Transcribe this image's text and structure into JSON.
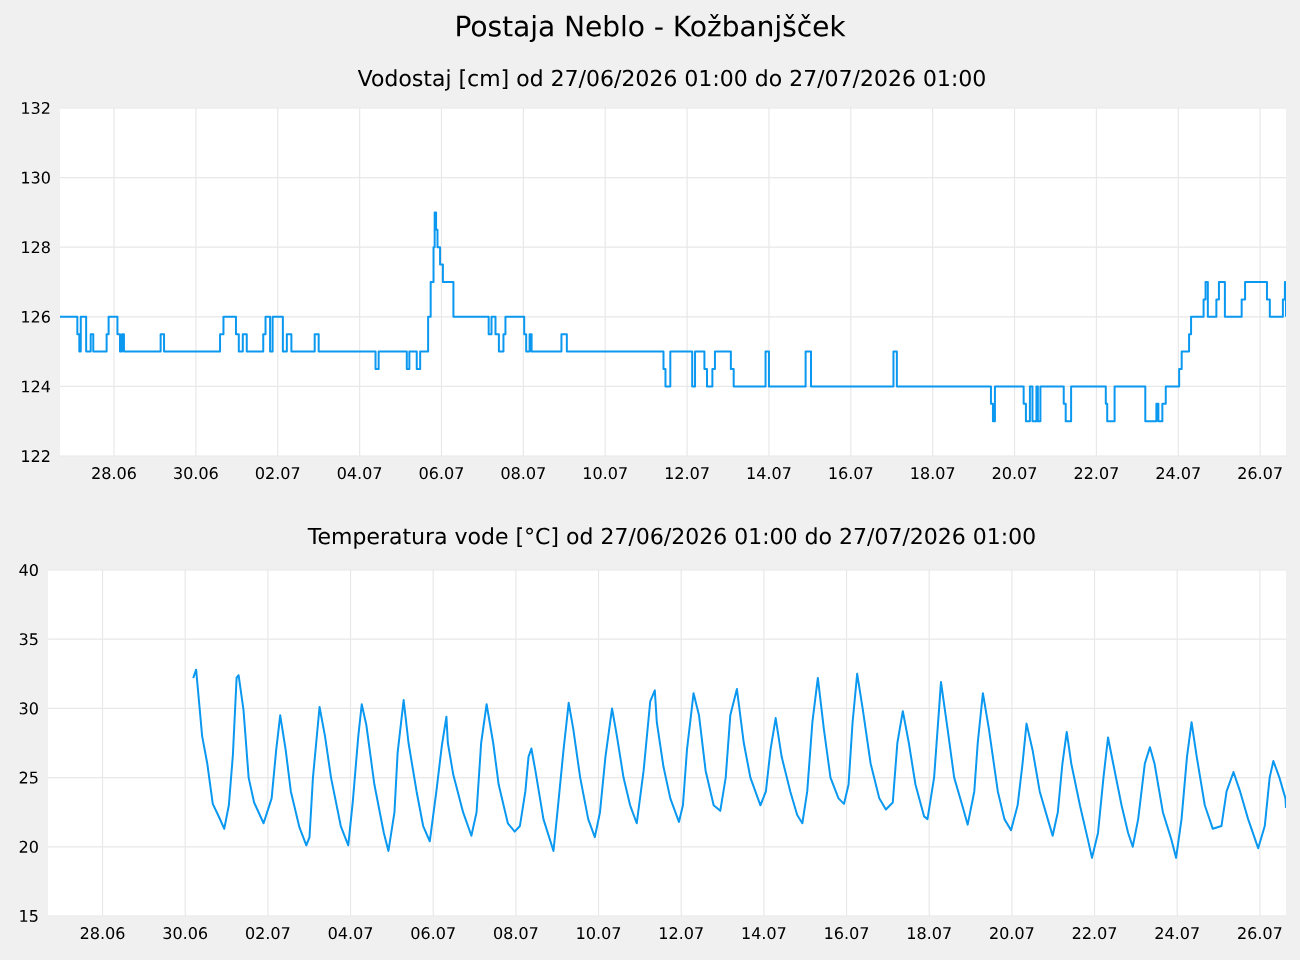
{
  "chart_data": [
    {
      "type": "step",
      "title": "Postaja Neblo - Kožbanjšček",
      "subtitle": "Vodostaj [cm] od 27/06/2026 01:00 do 27/07/2026 01:00",
      "color": "#0a98f0",
      "grid": true,
      "xlim": [
        "2026-06-26T16:20",
        "2026-07-26T15:10"
      ],
      "xticks": [
        {
          "value": "2026-06-28",
          "label": "28.06"
        },
        {
          "value": "2026-06-30",
          "label": "30.06"
        },
        {
          "value": "2026-07-02",
          "label": "02.07"
        },
        {
          "value": "2026-07-04",
          "label": "04.07"
        },
        {
          "value": "2026-07-06",
          "label": "06.07"
        },
        {
          "value": "2026-07-08",
          "label": "08.07"
        },
        {
          "value": "2026-07-10",
          "label": "10.07"
        },
        {
          "value": "2026-07-12",
          "label": "12.07"
        },
        {
          "value": "2026-07-14",
          "label": "14.07"
        },
        {
          "value": "2026-07-16",
          "label": "16.07"
        },
        {
          "value": "2026-07-18",
          "label": "18.07"
        },
        {
          "value": "2026-07-20",
          "label": "20.07"
        },
        {
          "value": "2026-07-22",
          "label": "22.07"
        },
        {
          "value": "2026-07-24",
          "label": "24.07"
        },
        {
          "value": "2026-07-26",
          "label": "26.07"
        }
      ],
      "ylim": [
        122,
        132
      ],
      "yticks": [
        122,
        124,
        126,
        128,
        130,
        132
      ],
      "x": [
        "2026-06-26T16:20",
        "2026-06-27T02:30",
        "2026-06-27T03:40",
        "2026-06-27T04:30",
        "2026-06-27T07:40",
        "2026-06-27T10:20",
        "2026-06-27T11:50",
        "2026-06-27T19:40",
        "2026-06-27T20:50",
        "2026-06-28T02:00",
        "2026-06-28T03:30",
        "2026-06-28T04:40",
        "2026-06-28T05:50",
        "2026-06-29T03:20",
        "2026-06-29T05:20",
        "2026-06-30T14:10",
        "2026-06-30T16:10",
        "2026-06-30T23:30",
        "2026-07-01T01:10",
        "2026-07-01T03:30",
        "2026-07-01T05:50",
        "2026-07-01T15:30",
        "2026-07-01T16:50",
        "2026-07-01T19:30",
        "2026-07-01T21:00",
        "2026-07-02T03:00",
        "2026-07-02T05:20",
        "2026-07-02T08:00",
        "2026-07-02T21:40",
        "2026-07-03T00:00",
        "2026-07-04T09:20",
        "2026-07-04T11:10",
        "2026-07-05T03:40",
        "2026-07-05T05:10",
        "2026-07-05T09:30",
        "2026-07-05T11:30",
        "2026-07-05T16:10",
        "2026-07-05T17:40",
        "2026-07-05T19:20",
        "2026-07-05T20:00",
        "2026-07-05T20:50",
        "2026-07-05T21:40",
        "2026-07-05T23:10",
        "2026-07-06T00:50",
        "2026-07-06T07:00",
        "2026-07-07T03:40",
        "2026-07-07T05:20",
        "2026-07-07T07:40",
        "2026-07-07T09:40",
        "2026-07-07T12:20",
        "2026-07-07T13:30",
        "2026-07-08T00:30",
        "2026-07-08T01:40",
        "2026-07-08T03:40",
        "2026-07-08T04:50",
        "2026-07-08T22:20",
        "2026-07-09T01:30",
        "2026-07-11T10:10",
        "2026-07-11T11:20",
        "2026-07-11T14:10",
        "2026-07-12T03:00",
        "2026-07-12T04:40",
        "2026-07-12T10:10",
        "2026-07-12T11:40",
        "2026-07-12T14:50",
        "2026-07-12T16:20",
        "2026-07-13T01:40",
        "2026-07-13T03:20",
        "2026-07-13T22:00",
        "2026-07-14T00:00",
        "2026-07-14T21:30",
        "2026-07-15T00:40",
        "2026-07-17T01:00",
        "2026-07-17T03:00",
        "2026-07-19T10:10",
        "2026-07-19T11:20",
        "2026-07-19T12:30",
        "2026-07-20T05:20",
        "2026-07-20T06:40",
        "2026-07-20T09:00",
        "2026-07-20T10:30",
        "2026-07-20T12:50",
        "2026-07-20T13:40",
        "2026-07-20T15:10",
        "2026-07-21T04:50",
        "2026-07-21T06:00",
        "2026-07-21T09:10",
        "2026-07-22T05:30",
        "2026-07-22T06:20",
        "2026-07-22T10:40",
        "2026-07-23T04:40",
        "2026-07-23T11:10",
        "2026-07-23T12:20",
        "2026-07-23T14:40",
        "2026-07-23T16:40",
        "2026-07-24T00:30",
        "2026-07-24T02:00",
        "2026-07-24T06:20",
        "2026-07-24T07:30",
        "2026-07-24T14:50",
        "2026-07-24T16:00",
        "2026-07-24T17:20",
        "2026-07-24T22:20",
        "2026-07-24T23:50",
        "2026-07-25T03:20",
        "2026-07-25T13:10",
        "2026-07-25T15:10",
        "2026-07-26T04:00",
        "2026-07-26T05:40",
        "2026-07-26T13:20",
        "2026-07-26T14:30",
        "2026-07-26T15:10"
      ],
      "values": [
        126,
        125.5,
        125,
        126,
        125,
        125.5,
        125,
        125.5,
        126,
        125.5,
        125,
        125.5,
        125,
        125.5,
        125,
        125.5,
        126,
        125.5,
        125,
        125.5,
        125,
        125.5,
        126,
        125,
        126,
        125,
        125.5,
        125,
        125.5,
        125,
        124.5,
        125,
        124.5,
        125,
        124.5,
        125,
        126,
        127,
        128,
        129,
        128.5,
        128,
        127.5,
        127,
        126,
        125.5,
        126,
        125.5,
        125,
        125.5,
        126,
        125.5,
        125,
        125.5,
        125,
        125.5,
        125,
        124.5,
        124,
        125,
        124,
        125,
        124.5,
        124,
        124.5,
        125,
        124.5,
        124,
        125,
        124,
        125,
        124,
        125,
        124,
        123.5,
        123,
        124,
        123.5,
        123,
        124,
        123,
        124,
        123,
        124,
        123.5,
        123,
        124,
        123.5,
        123,
        124,
        123,
        123.5,
        123,
        123.5,
        124,
        124.5,
        125,
        125.5,
        126,
        126.5,
        127,
        126,
        126.5,
        127,
        126,
        126.5,
        127,
        126.5,
        126,
        126.5,
        127,
        126
      ]
    },
    {
      "type": "line",
      "subtitle": "Temperatura vode [°C] od 27/06/2026 01:00 do 27/07/2026 01:00",
      "color": "#0a98f0",
      "grid": true,
      "xlim": [
        "2026-06-26T16:20",
        "2026-07-26T15:10"
      ],
      "xticks": [
        {
          "value": "2026-06-28",
          "label": "28.06"
        },
        {
          "value": "2026-06-30",
          "label": "30.06"
        },
        {
          "value": "2026-07-02",
          "label": "02.07"
        },
        {
          "value": "2026-07-04",
          "label": "04.07"
        },
        {
          "value": "2026-07-06",
          "label": "06.07"
        },
        {
          "value": "2026-07-08",
          "label": "08.07"
        },
        {
          "value": "2026-07-10",
          "label": "10.07"
        },
        {
          "value": "2026-07-12",
          "label": "12.07"
        },
        {
          "value": "2026-07-14",
          "label": "14.07"
        },
        {
          "value": "2026-07-16",
          "label": "16.07"
        },
        {
          "value": "2026-07-18",
          "label": "18.07"
        },
        {
          "value": "2026-07-20",
          "label": "20.07"
        },
        {
          "value": "2026-07-22",
          "label": "22.07"
        },
        {
          "value": "2026-07-24",
          "label": "24.07"
        },
        {
          "value": "2026-07-26",
          "label": "26.07"
        }
      ],
      "ylim": [
        15,
        40
      ],
      "yticks": [
        15,
        20,
        25,
        30,
        35,
        40
      ],
      "x": [
        "2026-06-30T04:40",
        "2026-06-30T06:20",
        "2026-06-30T08:10",
        "2026-06-30T09:50",
        "2026-06-30T12:50",
        "2026-06-30T16:00",
        "2026-06-30T19:50",
        "2026-06-30T22:40",
        "2026-07-01T01:20",
        "2026-07-01T03:40",
        "2026-07-01T05:50",
        "2026-07-01T07:00",
        "2026-07-01T09:50",
        "2026-07-01T12:50",
        "2026-07-01T16:00",
        "2026-07-01T21:30",
        "2026-07-02T02:10",
        "2026-07-02T04:50",
        "2026-07-02T07:10",
        "2026-07-02T10:20",
        "2026-07-02T13:20",
        "2026-07-02T18:20",
        "2026-07-02T22:20",
        "2026-07-03T00:10",
        "2026-07-03T02:10",
        "2026-07-03T06:00",
        "2026-07-03T09:10",
        "2026-07-03T12:40",
        "2026-07-03T18:20",
        "2026-07-03T22:40",
        "2026-07-04T01:20",
        "2026-07-04T04:30",
        "2026-07-04T06:30",
        "2026-07-04T09:10",
        "2026-07-04T13:50",
        "2026-07-04T19:20",
        "2026-07-04T22:00",
        "2026-07-05T01:30",
        "2026-07-05T03:20",
        "2026-07-05T06:50",
        "2026-07-05T09:40",
        "2026-07-05T14:20",
        "2026-07-05T18:10",
        "2026-07-05T22:00",
        "2026-07-06T01:50",
        "2026-07-06T05:00",
        "2026-07-06T07:40",
        "2026-07-06T08:30",
        "2026-07-06T11:40",
        "2026-07-06T17:20",
        "2026-07-06T22:10",
        "2026-07-07T01:10",
        "2026-07-07T03:50",
        "2026-07-07T07:00",
        "2026-07-07T10:50",
        "2026-07-07T14:00",
        "2026-07-07T19:20",
        "2026-07-07T23:20",
        "2026-07-08T02:20",
        "2026-07-08T05:30",
        "2026-07-08T07:20",
        "2026-07-08T09:00",
        "2026-07-08T11:20",
        "2026-07-08T16:00",
        "2026-07-08T21:50",
        "2026-07-09T00:30",
        "2026-07-09T03:40",
        "2026-07-09T06:40",
        "2026-07-09T09:20",
        "2026-07-09T13:20",
        "2026-07-09T18:00",
        "2026-07-09T21:50",
        "2026-07-10T00:50",
        "2026-07-10T04:00",
        "2026-07-10T07:50",
        "2026-07-10T10:40",
        "2026-07-10T14:30",
        "2026-07-10T18:20",
        "2026-07-10T22:10",
        "2026-07-11T02:10",
        "2026-07-11T06:00",
        "2026-07-11T08:40",
        "2026-07-11T09:50",
        "2026-07-11T13:40",
        "2026-07-11T17:40",
        "2026-07-11T22:40",
        "2026-07-12T01:00",
        "2026-07-12T03:20",
        "2026-07-12T07:10",
        "2026-07-12T10:20",
        "2026-07-12T14:10",
        "2026-07-12T18:50",
        "2026-07-12T22:40",
        "2026-07-13T01:50",
        "2026-07-13T04:30",
        "2026-07-13T08:20",
        "2026-07-13T12:20",
        "2026-07-13T16:10",
        "2026-07-13T22:00",
        "2026-07-14T01:10",
        "2026-07-14T03:50",
        "2026-07-14T06:50",
        "2026-07-14T10:20",
        "2026-07-14T15:20",
        "2026-07-14T19:20",
        "2026-07-14T22:20",
        "2026-07-15T01:10",
        "2026-07-15T04:10",
        "2026-07-15T07:20",
        "2026-07-15T10:50",
        "2026-07-15T14:40",
        "2026-07-15T19:20",
        "2026-07-15T22:30",
        "2026-07-16T01:10",
        "2026-07-16T03:30",
        "2026-07-16T06:10",
        "2026-07-16T09:20",
        "2026-07-16T14:00",
        "2026-07-16T19:00",
        "2026-07-16T22:50",
        "2026-07-17T02:50",
        "2026-07-17T05:30",
        "2026-07-17T08:40",
        "2026-07-17T12:10",
        "2026-07-17T16:00",
        "2026-07-17T21:00",
        "2026-07-17T23:00",
        "2026-07-18T02:50",
        "2026-07-18T06:50",
        "2026-07-18T10:40",
        "2026-07-18T14:30",
        "2026-07-18T19:10",
        "2026-07-18T22:20",
        "2026-07-19T02:10",
        "2026-07-19T04:10",
        "2026-07-19T07:10",
        "2026-07-19T10:40",
        "2026-07-19T15:50",
        "2026-07-19T19:40",
        "2026-07-19T23:30",
        "2026-07-20T03:20",
        "2026-07-20T06:10",
        "2026-07-20T08:30",
        "2026-07-20T12:00",
        "2026-07-20T16:10",
        "2026-07-20T20:50",
        "2026-07-20T23:40",
        "2026-07-21T02:40",
        "2026-07-21T05:20",
        "2026-07-21T07:50",
        "2026-07-21T10:30",
        "2026-07-21T15:30",
        "2026-07-21T20:10",
        "2026-07-21T22:30",
        "2026-07-22T02:00",
        "2026-07-22T05:10",
        "2026-07-22T07:50",
        "2026-07-22T10:50",
        "2026-07-22T15:40",
        "2026-07-22T19:30",
        "2026-07-22T22:10",
        "2026-07-23T01:20",
        "2026-07-23T05:10",
        "2026-07-23T08:10",
        "2026-07-23T10:50",
        "2026-07-23T15:40",
        "2026-07-23T20:40",
        "2026-07-23T23:20",
        "2026-07-24T02:30",
        "2026-07-24T05:40",
        "2026-07-24T08:20",
        "2026-07-24T11:20",
        "2026-07-24T16:00",
        "2026-07-24T20:40",
        "2026-07-25T01:40",
        "2026-07-25T04:40",
        "2026-07-25T08:40",
        "2026-07-25T12:30",
        "2026-07-25T17:10",
        "2026-07-25T23:00",
        "2026-07-26T02:50",
        "2026-07-26T05:40",
        "2026-07-26T07:50",
        "2026-07-26T11:20",
        "2026-07-26T14:50",
        "2026-07-26T15:10"
      ],
      "values": [
        32.2,
        32.8,
        30.3,
        28.0,
        26.0,
        23.1,
        22.1,
        21.3,
        23.0,
        26.6,
        32.2,
        32.4,
        29.9,
        25.0,
        23.2,
        21.7,
        23.5,
        27.0,
        29.5,
        27.0,
        24.0,
        21.4,
        20.1,
        20.7,
        25.0,
        30.1,
        28.0,
        25.0,
        21.5,
        20.1,
        23.3,
        28.0,
        30.3,
        28.8,
        24.5,
        21.0,
        19.7,
        22.5,
        26.8,
        30.6,
        27.5,
        24.0,
        21.5,
        20.4,
        24.0,
        27.3,
        29.4,
        27.5,
        25.2,
        22.5,
        20.8,
        22.5,
        27.5,
        30.3,
        27.5,
        24.5,
        21.7,
        21.1,
        21.5,
        24.0,
        26.5,
        27.1,
        25.5,
        22.0,
        19.7,
        23.0,
        27.0,
        30.4,
        28.5,
        25.0,
        22.0,
        20.7,
        22.5,
        26.5,
        30.0,
        28.0,
        25.0,
        23.0,
        21.7,
        25.5,
        30.5,
        31.3,
        29.0,
        25.8,
        23.5,
        21.8,
        23.0,
        27.0,
        31.1,
        29.5,
        25.5,
        23.0,
        22.6,
        25.0,
        29.5,
        31.4,
        27.5,
        25.0,
        23.0,
        24.0,
        27.0,
        29.3,
        26.5,
        24.0,
        22.3,
        21.7,
        24.0,
        29.0,
        32.2,
        28.5,
        25.0,
        23.5,
        23.1,
        24.5,
        29.0,
        32.5,
        30.0,
        26.0,
        23.5,
        22.7,
        23.2,
        27.5,
        29.8,
        27.5,
        24.5,
        22.2,
        22.0,
        25.0,
        31.9,
        28.5,
        25.0,
        23.0,
        21.6,
        24.0,
        27.5,
        31.1,
        28.5,
        24.0,
        22.0,
        21.2,
        23.0,
        26.0,
        28.9,
        27.0,
        24.0,
        22.0,
        20.8,
        22.5,
        26.0,
        28.3,
        26.0,
        23.0,
        20.5,
        19.2,
        21.0,
        25.0,
        27.9,
        26.0,
        23.0,
        21.0,
        20.0,
        22.0,
        26.0,
        27.2,
        26.0,
        22.5,
        20.5,
        19.2,
        22.0,
        26.5,
        29.0,
        26.5,
        23.0,
        21.3,
        21.5,
        24.0,
        25.4,
        24.0,
        22.0,
        19.9,
        21.5,
        25.0,
        26.2,
        25.0,
        23.5,
        22.8
      ]
    }
  ]
}
